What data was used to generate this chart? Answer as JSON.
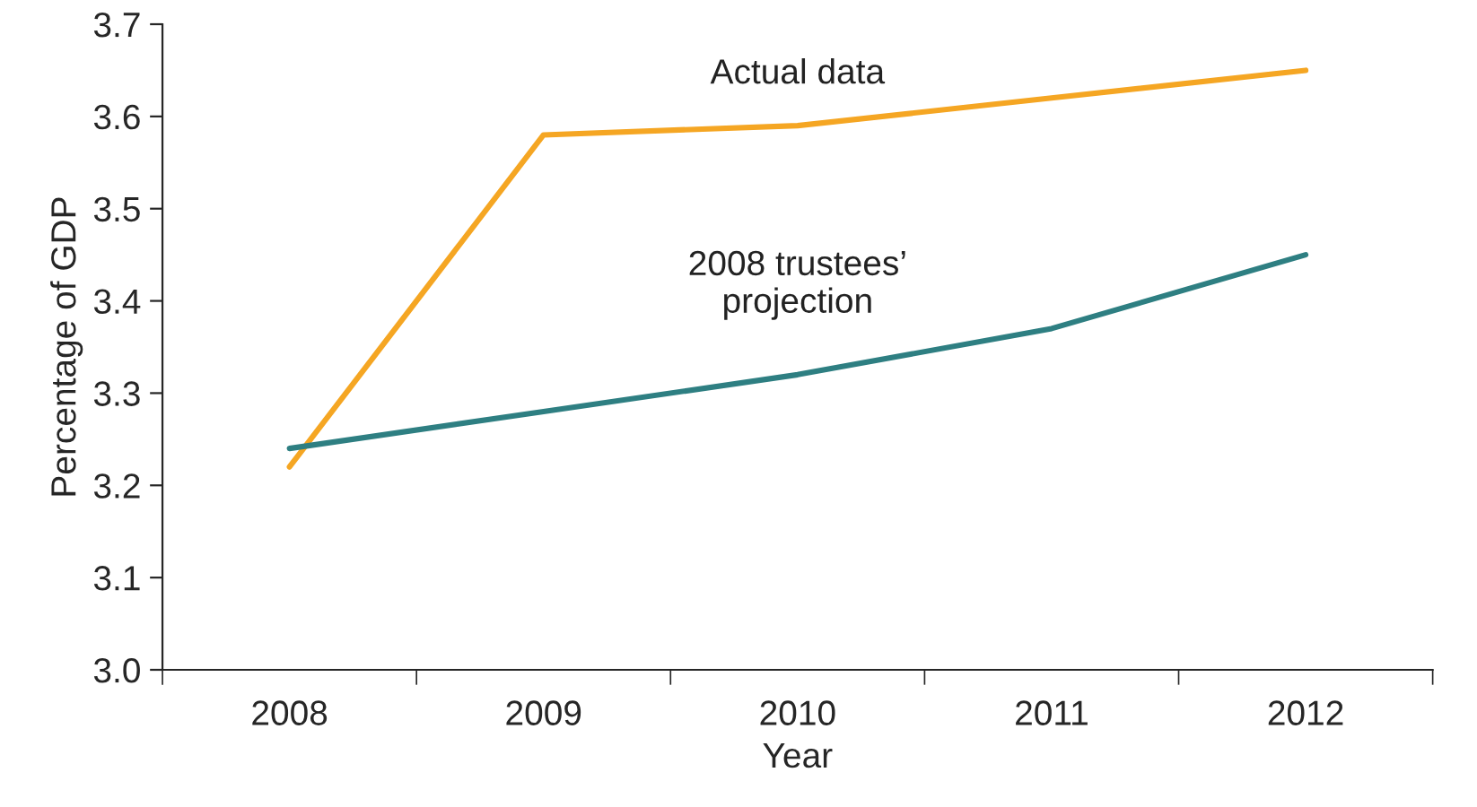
{
  "chart_data": {
    "type": "line",
    "xlabel": "Year",
    "ylabel": "Percentage of GDP",
    "categories": [
      "2008",
      "2009",
      "2010",
      "2011",
      "2012"
    ],
    "series": [
      {
        "name": "Actual data",
        "color": "#f5a623",
        "values": [
          3.22,
          3.58,
          3.59,
          3.62,
          3.65
        ]
      },
      {
        "name": "2008 trustees’\nprojection",
        "color": "#2e7f82",
        "values": [
          3.24,
          3.28,
          3.32,
          3.37,
          3.45
        ]
      }
    ],
    "ylim": [
      3.0,
      3.7
    ],
    "yticks": [
      {
        "value": 3.0,
        "label": "3.0"
      },
      3.1,
      3.2,
      3.3,
      3.4,
      3.5,
      3.6,
      {
        "value": 3.7,
        "label": "3.7"
      }
    ],
    "grid": false,
    "legend": false,
    "marker": "none",
    "line_style": "solid"
  }
}
